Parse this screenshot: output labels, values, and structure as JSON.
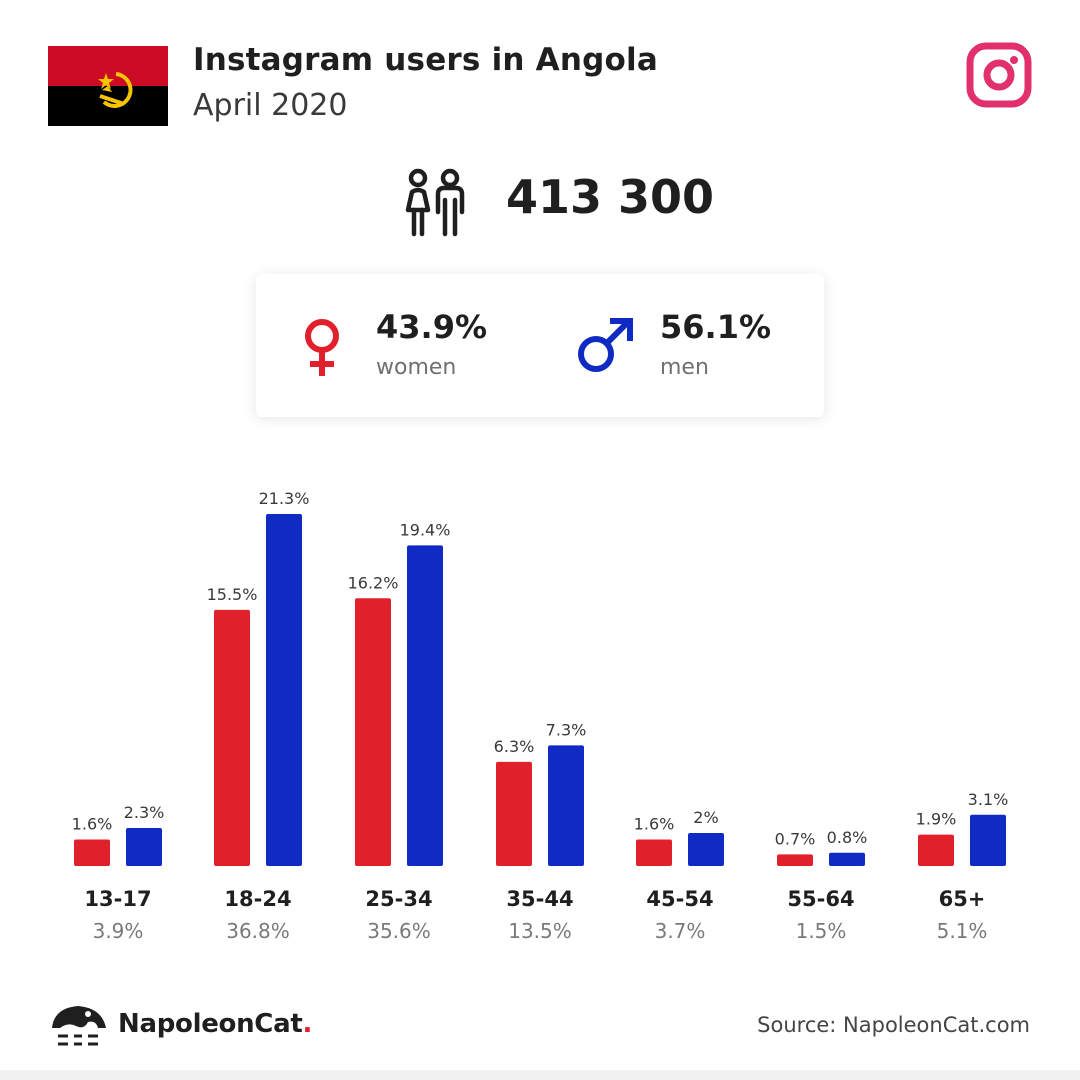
{
  "header": {
    "title": "Instagram users in Angola",
    "subtitle": "April 2020"
  },
  "total_users": "413 300",
  "gender": {
    "women_pct": "43.9%",
    "women_label": "women",
    "men_pct": "56.1%",
    "men_label": "men"
  },
  "colors": {
    "women": "#e0202a",
    "men": "#0f2bc4",
    "instagram": "#e1306c"
  },
  "icons": [
    "angola-flag",
    "instagram-icon",
    "people-icon",
    "female-icon",
    "male-icon",
    "napoleoncat-logo-icon"
  ],
  "chart_data": {
    "type": "bar",
    "categories": [
      "13-17",
      "18-24",
      "25-34",
      "35-44",
      "45-54",
      "55-64",
      "65+"
    ],
    "category_totals": [
      "3.9%",
      "36.8%",
      "35.6%",
      "13.5%",
      "3.7%",
      "1.5%",
      "5.1%"
    ],
    "series": [
      {
        "values": [
          1.6,
          15.5,
          16.2,
          6.3,
          1.6,
          0.7,
          1.9
        ],
        "labels": [
          "1.6%",
          "15.5%",
          "16.2%",
          "6.3%",
          "1.6%",
          "0.7%",
          "1.9%"
        ]
      },
      {
        "values": [
          2.3,
          21.3,
          19.4,
          7.3,
          2,
          0.8,
          3.1
        ],
        "labels": [
          "2.3%",
          "21.3%",
          "19.4%",
          "7.3%",
          "2%",
          "0.8%",
          "3.1%"
        ]
      }
    ],
    "ylim": [
      0,
      21.3
    ],
    "grid": false
  },
  "footer": {
    "brand_name": "NapoleonCat",
    "brand_dot": ".",
    "source": "Source: NapoleonCat.com"
  }
}
